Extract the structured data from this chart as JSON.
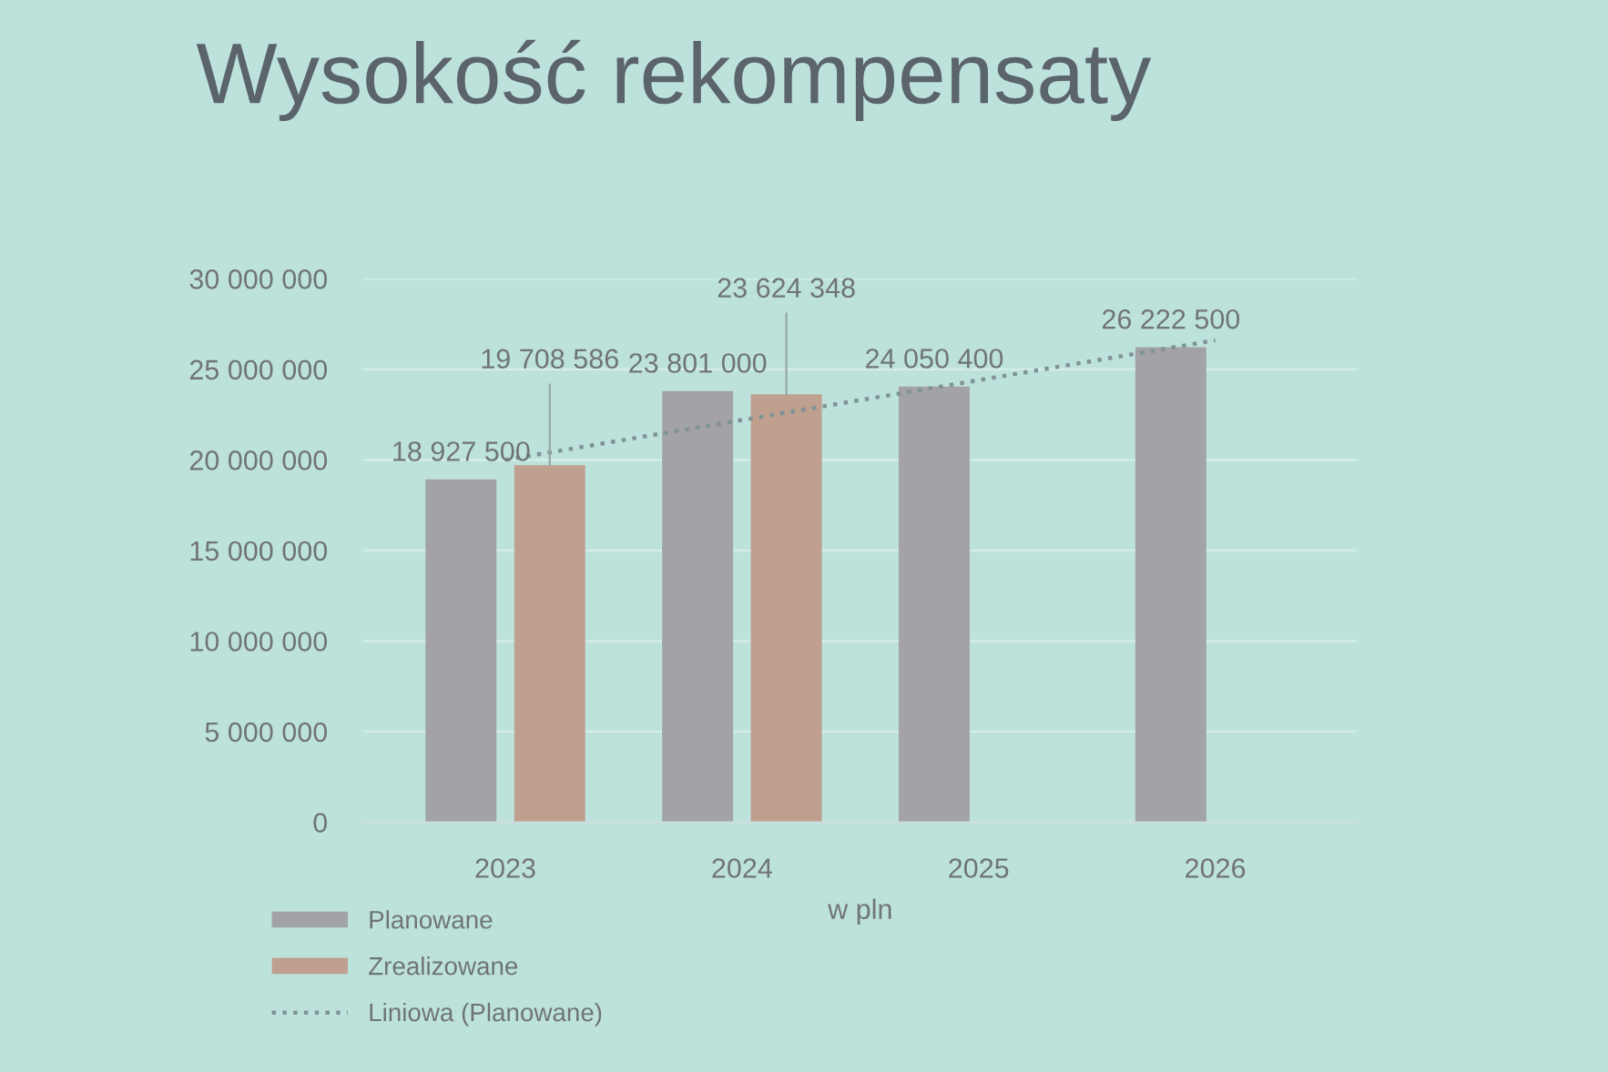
{
  "chart_data": {
    "type": "bar",
    "title": "Wysokość rekompensaty",
    "xlabel": "w pln",
    "categories": [
      "2023",
      "2024",
      "2025",
      "2026"
    ],
    "series": [
      {
        "name": "Planowane",
        "color": "#a3a2a6",
        "values": [
          18927500,
          23801000,
          24050400,
          26222500
        ],
        "value_labels": [
          "18 927 500",
          "23 801 000",
          "24 050 400",
          "26 222 500"
        ]
      },
      {
        "name": "Zrealizowane",
        "color": "#bf9f8e",
        "values": [
          19708586,
          23624348,
          null,
          null
        ],
        "value_labels": [
          "19 708 586",
          "23 624 348",
          null,
          null
        ]
      },
      {
        "name": "Liniowa (Planowane)",
        "type": "line",
        "line_style": "dotted",
        "marker": "none",
        "color": "#7f9296",
        "values": [
          20000000,
          22200000,
          24400000,
          26600000
        ]
      }
    ],
    "ylim": [
      0,
      30000000
    ],
    "yticks": [
      {
        "value": 0,
        "label": "0"
      },
      {
        "value": 5000000,
        "label": "5 000 000"
      },
      {
        "value": 10000000,
        "label": "10 000 000"
      },
      {
        "value": 15000000,
        "label": "15 000 000"
      },
      {
        "value": 20000000,
        "label": "20 000 000"
      },
      {
        "value": 25000000,
        "label": "25 000 000"
      },
      {
        "value": 30000000,
        "label": "30 000 000"
      }
    ],
    "grid": "y",
    "legend": "bottom left"
  }
}
